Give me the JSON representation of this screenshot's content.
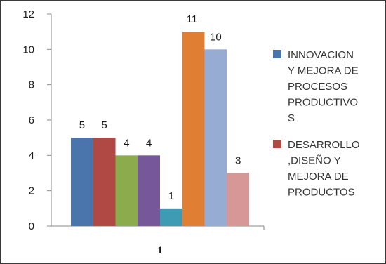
{
  "chart_data": {
    "type": "bar",
    "title": "",
    "xlabel": "",
    "ylabel": "",
    "ylim": [
      0,
      12
    ],
    "yticks": [
      0,
      2,
      4,
      6,
      8,
      10,
      12
    ],
    "grid": false,
    "legend_position": "right",
    "categories": [
      "1"
    ],
    "bars": [
      {
        "value": 5,
        "color": "#4a74ac"
      },
      {
        "value": 5,
        "color": "#b04844"
      },
      {
        "value": 4,
        "color": "#8cab4d"
      },
      {
        "value": 4,
        "color": "#76589a"
      },
      {
        "value": 1,
        "color": "#3f9ab3"
      },
      {
        "value": 11,
        "color": "#e07f34"
      },
      {
        "value": 10,
        "color": "#97acd3"
      },
      {
        "value": 3,
        "color": "#d69796"
      }
    ],
    "series": [
      {
        "name": "INNOVACION Y MEJORA DE PROCESOS PRODUCTIVOS",
        "values": [
          5
        ],
        "color": "#4a74ac"
      },
      {
        "name": "DESARROLLO ,DISEÑO Y MEJORA DE PRODUCTOS",
        "values": [
          5
        ],
        "color": "#b04844"
      }
    ]
  },
  "legend": {
    "items": [
      {
        "lines": [
          "INNOVACION",
          "Y MEJORA DE",
          "PROCESOS",
          "PRODUCTIVO",
          "S"
        ],
        "color": "#4a74ac"
      },
      {
        "lines": [
          "DESARROLLO",
          ",DISEÑO Y",
          "MEJORA DE",
          "PRODUCTOS"
        ],
        "color": "#b04844"
      }
    ]
  }
}
